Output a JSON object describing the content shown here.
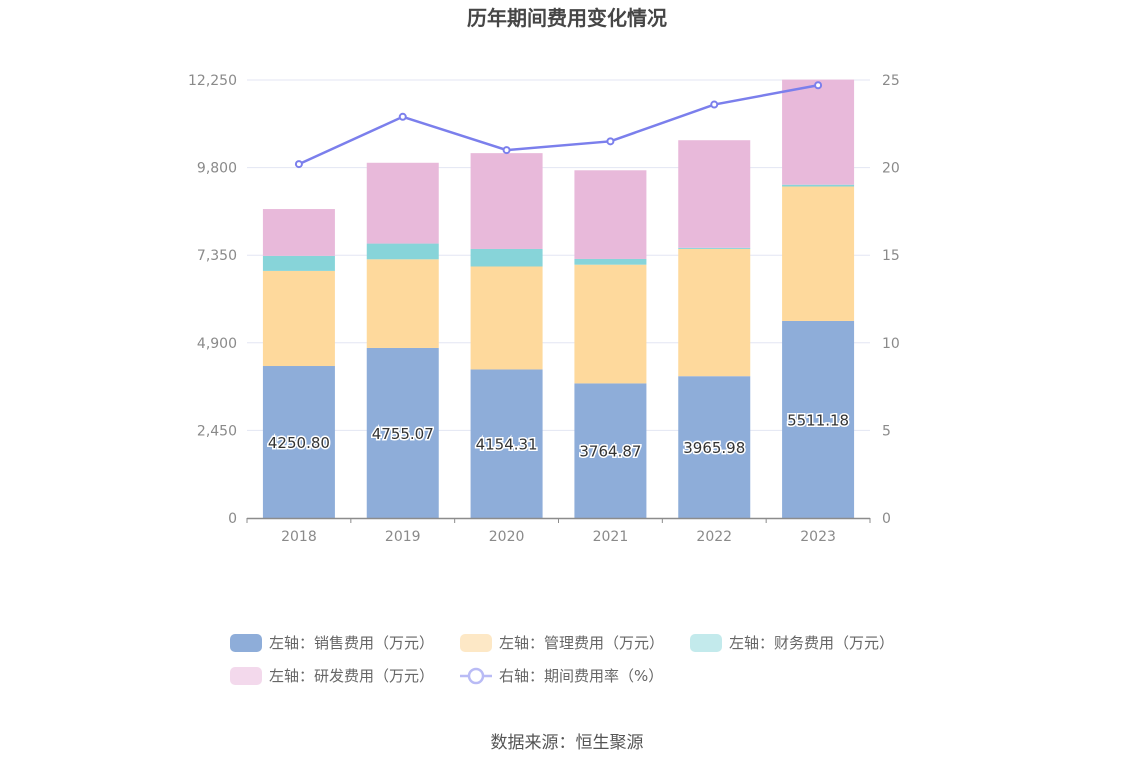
{
  "chart_data": {
    "type": "bar",
    "title": "历年期间费用变化情况",
    "categories": [
      "2018",
      "2019",
      "2020",
      "2021",
      "2022",
      "2023"
    ],
    "left_axis": {
      "ylim": [
        0,
        12250
      ],
      "ticks": [
        "0",
        "2,450",
        "4,900",
        "7,350",
        "9,800",
        "12,250"
      ],
      "tick_values": [
        0,
        2450,
        4900,
        7350,
        9800,
        12250
      ]
    },
    "right_axis": {
      "ylim": [
        0,
        25
      ],
      "ticks": [
        "0",
        "5",
        "10",
        "15",
        "20",
        "25"
      ],
      "tick_values": [
        0,
        5,
        10,
        15,
        20,
        25
      ]
    },
    "series": [
      {
        "name": "左轴：销售费用（万元）",
        "type": "bar",
        "axis": "left",
        "color": "#8eadd9",
        "values": [
          4250.8,
          4755.07,
          4154.31,
          3764.87,
          3965.98,
          5511.18
        ],
        "labels": [
          "4250.80",
          "4755.07",
          "4154.31",
          "3764.87",
          "3965.98",
          "5511.18"
        ]
      },
      {
        "name": "左轴：管理费用（万元）",
        "type": "bar",
        "axis": "left",
        "color": "#fed99c",
        "values": [
          2660,
          2480,
          2880,
          3320,
          3560,
          3760
        ]
      },
      {
        "name": "左轴：财务费用（万元）",
        "type": "bar",
        "axis": "left",
        "color": "#87d4d9",
        "values": [
          420,
          440,
          490,
          160,
          30,
          50
        ]
      },
      {
        "name": "左轴：研发费用（万元）",
        "type": "bar",
        "axis": "left",
        "color": "#e8b9da",
        "values": [
          1310,
          2260,
          2680,
          2480,
          3010,
          2940
        ]
      },
      {
        "name": "右轴：期间费用率（%）",
        "type": "line",
        "axis": "right",
        "color": "#7b7fec",
        "values": [
          20.2,
          22.9,
          21.0,
          21.5,
          23.6,
          24.7
        ]
      }
    ],
    "legend": [
      {
        "label": "左轴：销售费用（万元）",
        "color": "#8eadd9",
        "kind": "box"
      },
      {
        "label": "左轴：管理费用（万元）",
        "color": "#fde8c6",
        "kind": "box"
      },
      {
        "label": "左轴：财务费用（万元）",
        "color": "#c3eaec",
        "kind": "box"
      },
      {
        "label": "左轴：研发费用（万元）",
        "color": "#f3d9ec",
        "kind": "box"
      },
      {
        "label": "右轴：期间费用率（%）",
        "color": "#b9bbf5",
        "kind": "line"
      }
    ],
    "source": "数据来源：恒生聚源"
  }
}
